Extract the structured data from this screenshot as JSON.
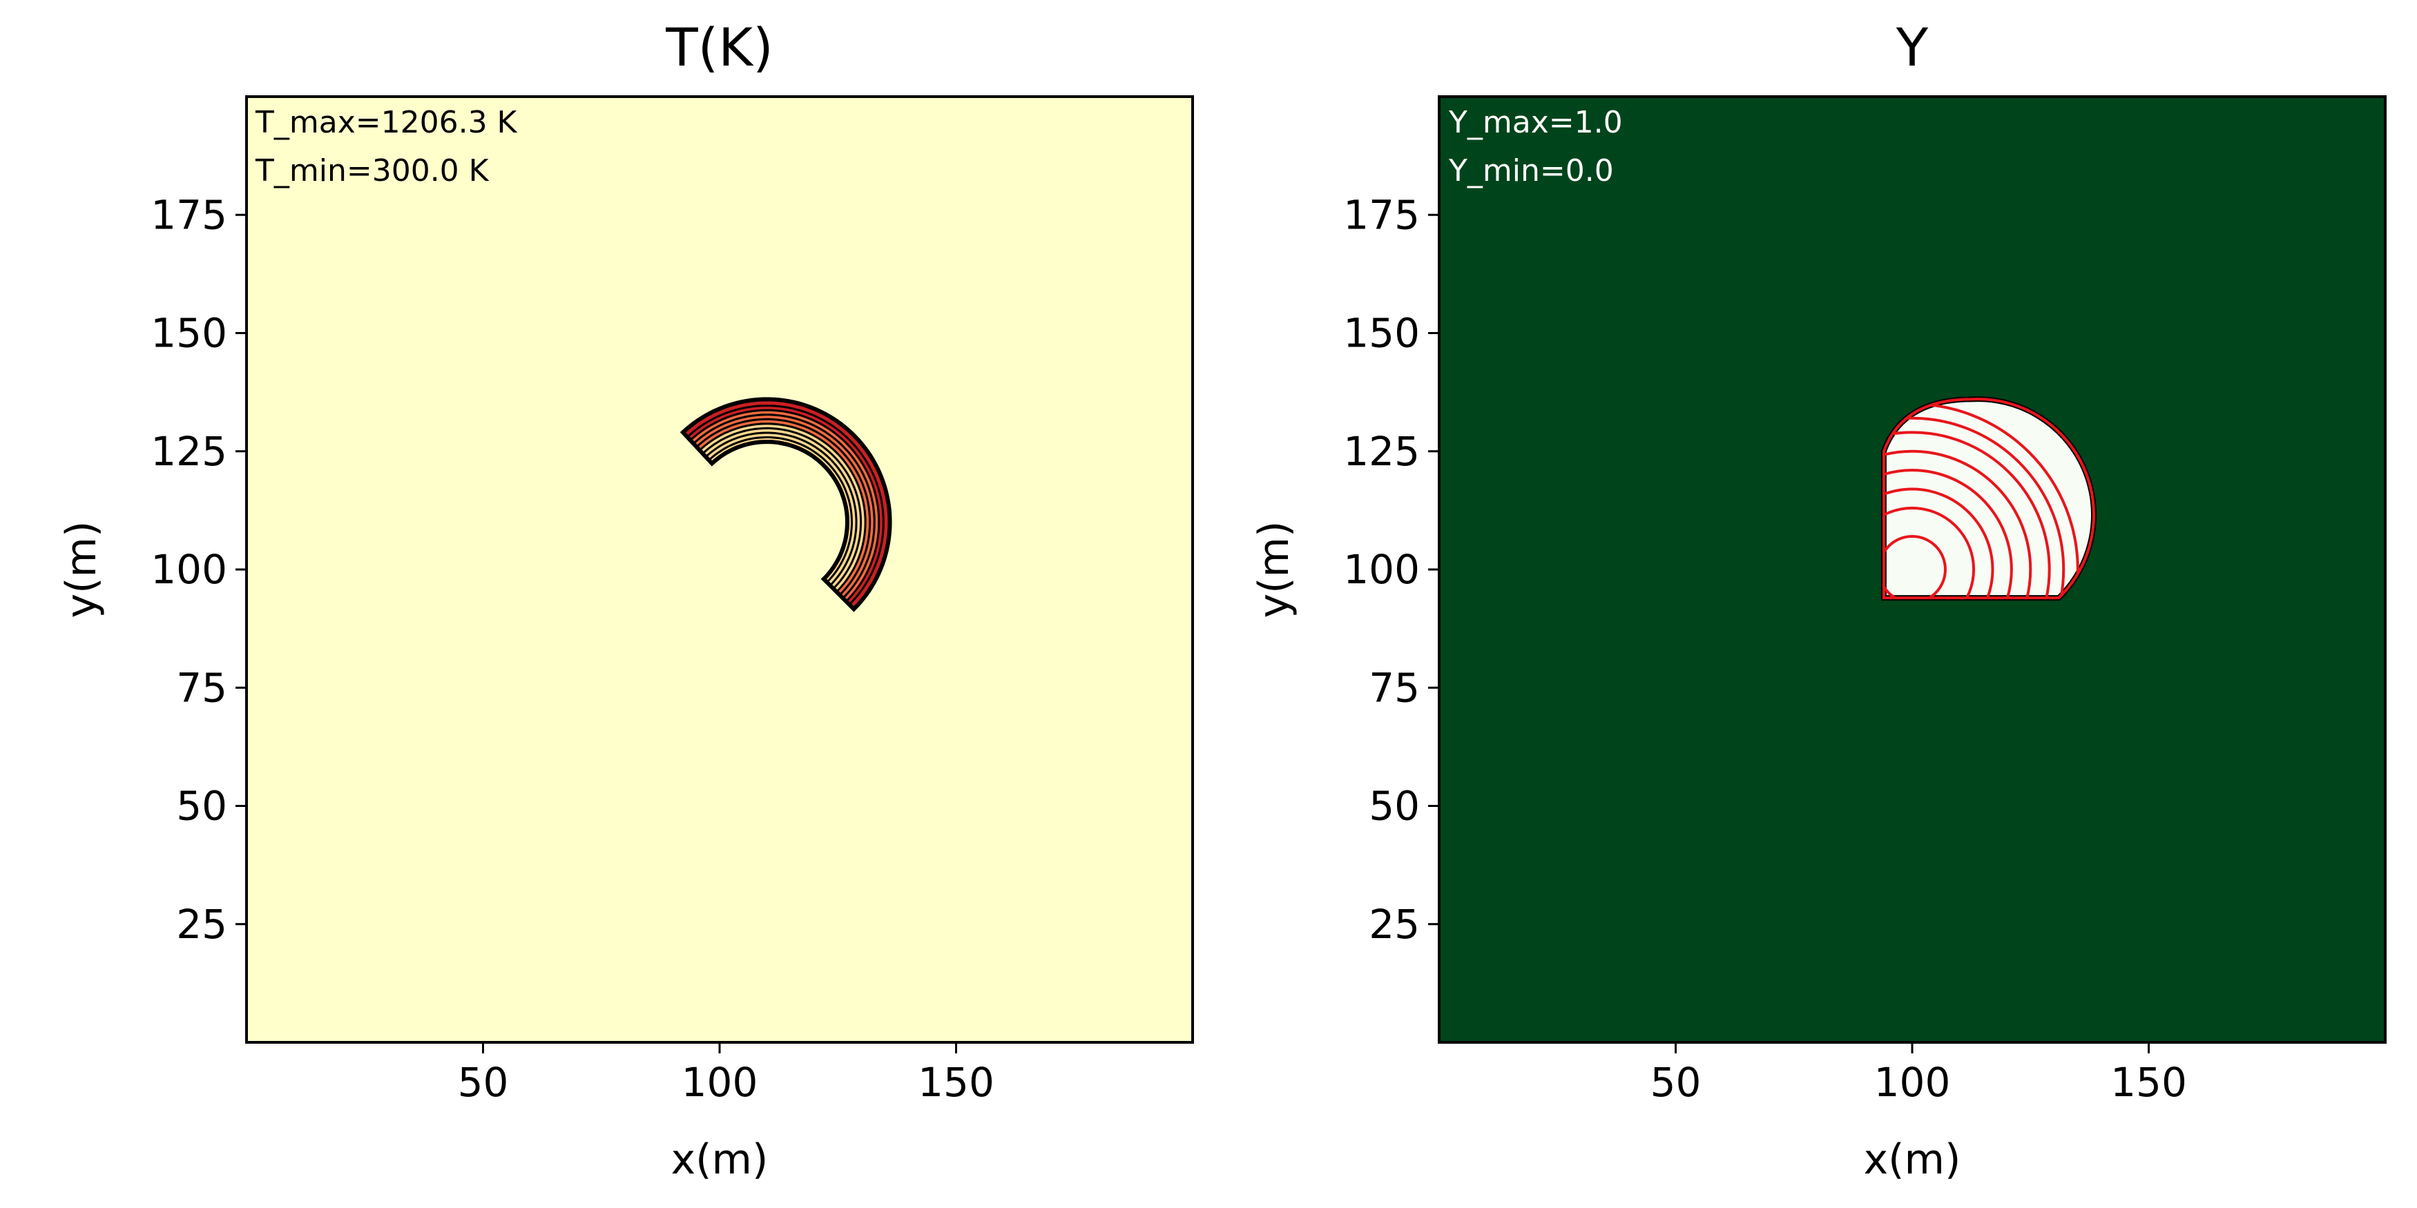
{
  "chart_data": [
    {
      "type": "heatmap",
      "title": "T(K)",
      "xlabel": "x(m)",
      "ylabel": "y(m)",
      "xlim": [
        0,
        200
      ],
      "ylim": [
        0,
        200
      ],
      "xticks": [
        "50",
        "100",
        "150"
      ],
      "yticks": [
        "25",
        "50",
        "75",
        "100",
        "125",
        "150",
        "175"
      ],
      "grid": false,
      "annotations": [
        "T_max=1206.3 K",
        "T_min=300.0 K"
      ],
      "field": {
        "min": 300.0,
        "max": 1206.3,
        "colormap": "YlOrRd",
        "background_color": "#ffffcc",
        "front_shape": "crescent",
        "front_center": [
          110,
          110
        ],
        "front_outer_radius": 26,
        "front_inner_radius": 17,
        "front_arc_start": [
          96,
          125
        ],
        "front_arc_end": [
          126,
          94
        ],
        "contour_color": "#000000",
        "contour_levels": 9,
        "hot_color": "#cc1f24",
        "warm_color": "#f26a3f"
      }
    },
    {
      "type": "heatmap",
      "title": "Y",
      "xlabel": "x(m)",
      "ylabel": "y(m)",
      "xlim": [
        0,
        200
      ],
      "ylim": [
        0,
        200
      ],
      "xticks": [
        "50",
        "100",
        "150"
      ],
      "yticks": [
        "25",
        "50",
        "75",
        "100",
        "125",
        "150",
        "175"
      ],
      "grid": false,
      "annotations": [
        "Y_max=1.0",
        "Y_min=0.0"
      ],
      "field": {
        "min": 0.0,
        "max": 1.0,
        "colormap": "Greens",
        "background_color": "#00441b",
        "burned_region_color": "#f7fcf5",
        "burned_region_x": [
          94,
          137
        ],
        "burned_region_y": [
          94,
          136
        ],
        "contour_color": "#e8161b",
        "contour_center": [
          100,
          100
        ],
        "contour_radii": [
          7,
          13,
          17,
          21,
          25,
          29,
          32,
          35
        ]
      }
    }
  ]
}
